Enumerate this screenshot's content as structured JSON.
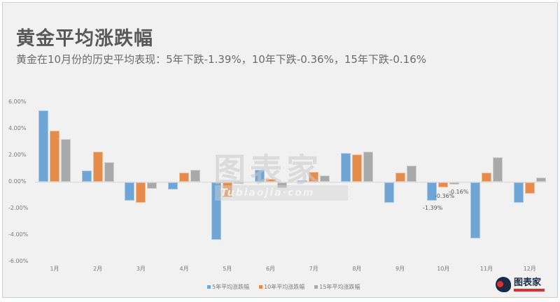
{
  "header": {
    "title": "黄金平均涨跌幅",
    "subtitle": "黄金在10月份的历史平均表现：5年下跌-1.39%，10年下跌-0.36%，15年下跌-0.16%"
  },
  "watermark": {
    "text": "图表家",
    "url_text": "Tubiaojia·com"
  },
  "logo": {
    "text": "图表家"
  },
  "chart_data": {
    "type": "bar",
    "title": "黄金平均涨跌幅",
    "subtitle": "黄金在10月份的历史平均表现：5年下跌-1.39%，10年下跌-0.36%，15年下跌-0.16%",
    "xlabel": "",
    "ylabel": "",
    "ylim": [
      -6,
      6
    ],
    "yticks": [
      "6.00%",
      "4.00%",
      "2.00%",
      "0.00%",
      "-2.00%",
      "-4.00%",
      "-6.00%"
    ],
    "grid": false,
    "legend_position": "bottom",
    "categories": [
      "1月",
      "2月",
      "3月",
      "4月",
      "5月",
      "6月",
      "7月",
      "8月",
      "9月",
      "10月",
      "11月",
      "12月"
    ],
    "series": [
      {
        "name": "5年平均涨跌幅",
        "color": "#6fa5d4",
        "values": [
          5.37,
          0.86,
          -1.37,
          -0.5,
          -4.3,
          0.9,
          0.1,
          2.17,
          -1.5,
          -1.39,
          -4.2,
          -1.5
        ]
      },
      {
        "name": "10年平均涨跌幅",
        "color": "#e58c4c",
        "values": [
          3.84,
          2.26,
          -1.5,
          0.66,
          -1.13,
          0.2,
          0.74,
          2.05,
          0.66,
          -0.36,
          0.66,
          -0.83
        ]
      },
      {
        "name": "15年平均涨跌幅",
        "color": "#a9a9a9",
        "values": [
          3.21,
          1.5,
          -0.45,
          0.9,
          -0.1,
          -0.4,
          0.5,
          2.26,
          1.2,
          -0.16,
          1.86,
          0.33
        ]
      }
    ],
    "annotations": [
      {
        "category": "10月",
        "series": "5年平均涨跌幅",
        "text": "-1.39%"
      },
      {
        "category": "10月",
        "series": "10年平均涨跌幅",
        "text": "-0.36%"
      },
      {
        "category": "10月",
        "series": "15年平均涨跌幅",
        "text": "-0.16%"
      }
    ]
  }
}
